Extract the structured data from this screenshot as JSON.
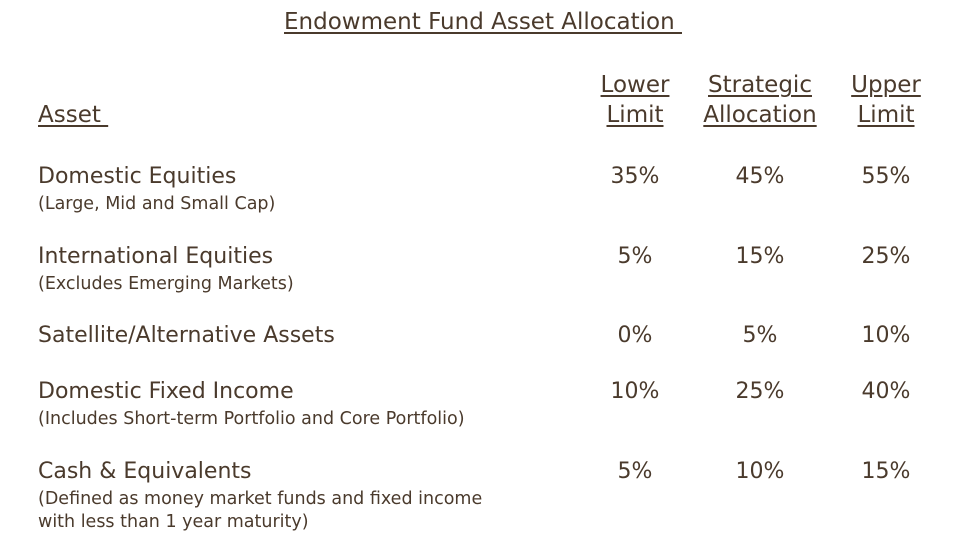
{
  "title": "Endowment Fund Asset Allocation ",
  "headers": {
    "asset": "Asset ",
    "lower_line1": "Lower",
    "lower_line2": "Limit",
    "strategic_line1": "Strategic",
    "strategic_line2": "Allocation",
    "upper_line1": "Upper",
    "upper_line2": "Limit"
  },
  "rows": [
    {
      "name": "Domestic Equities",
      "note": "(Large, Mid and Small Cap)",
      "lower": "35%",
      "strategic": "45%",
      "upper": "55%"
    },
    {
      "name": "International Equities",
      "note": "(Excludes Emerging Markets)",
      "lower": "5%",
      "strategic": "15%",
      "upper": "25%"
    },
    {
      "name": "Satellite/Alternative Assets",
      "note": "",
      "lower": "0%",
      "strategic": "5%",
      "upper": "10%"
    },
    {
      "name": "Domestic Fixed Income",
      "note": "(Includes Short-term Portfolio and Core Portfolio)",
      "lower": "10%",
      "strategic": "25%",
      "upper": "40%"
    },
    {
      "name": "Cash & Equivalents",
      "note": "(Defined as money market funds and fixed income\nwith less than 1 year maturity)",
      "lower": "5%",
      "strategic": "10%",
      "upper": "15%"
    }
  ],
  "colors": {
    "text": "#4a3a2c",
    "background": "#ffffff"
  }
}
